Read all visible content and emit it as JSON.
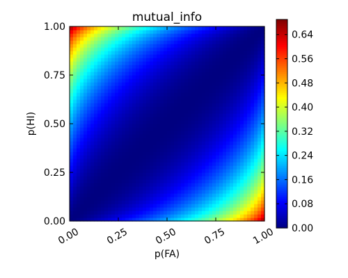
{
  "chart_data": {
    "type": "heatmap",
    "title": "mutual_info",
    "xlabel": "p(FA)",
    "ylabel": "p(HI)",
    "xlim": [
      0,
      1
    ],
    "ylim": [
      0,
      1
    ],
    "x_ticks": [
      "0.00",
      "0.25",
      "0.50",
      "0.75",
      "1.00"
    ],
    "y_ticks": [
      "0.00",
      "0.25",
      "0.50",
      "0.75",
      "1.00"
    ],
    "colormap": "jet",
    "value_range": [
      0,
      0.69
    ],
    "colorbar_ticks": [
      "0.00",
      "0.08",
      "0.16",
      "0.24",
      "0.32",
      "0.40",
      "0.48",
      "0.56",
      "0.64"
    ],
    "function": "mutual information between a binary signal and response with hit rate p(HI) and false-alarm rate p(FA); zero along p(HI)=p(FA), ~0.69 at corners (0,1) and (1,0)",
    "grid": false
  }
}
